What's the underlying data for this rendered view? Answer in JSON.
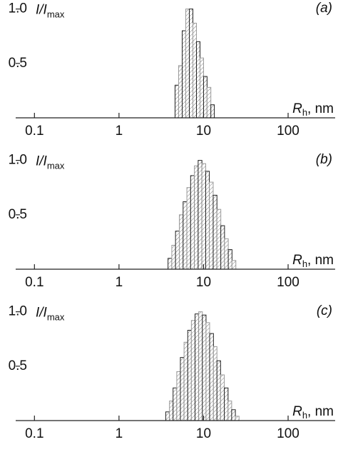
{
  "chart_data": [
    {
      "type": "histogram",
      "panel_label": "(a)",
      "y_label": "I/I",
      "y_label_sub": "max",
      "x_label": "R",
      "x_label_sub": "h",
      "x_label_unit": ", nm",
      "log_x": true,
      "xlim": [
        0.06,
        360
      ],
      "xticks": [
        0.1,
        1,
        10,
        100
      ],
      "ylim": [
        0,
        1.05
      ],
      "yticks": [
        {
          "value": 0.5,
          "label": "0.5"
        },
        {
          "value": 1,
          "label": "1.0"
        }
      ],
      "bins": [
        4.6,
        5.07,
        5.59,
        6.16,
        6.79,
        7.48,
        8.24,
        9.08,
        10.0,
        11.0,
        12.2,
        13.4
      ],
      "values": [
        0.3,
        0.48,
        0.8,
        1.0,
        1.0,
        0.87,
        0.7,
        0.55,
        0.38,
        0.28,
        0.12
      ]
    },
    {
      "type": "histogram",
      "panel_label": "(b)",
      "y_label": "I/I",
      "y_label_sub": "max",
      "x_label": "R",
      "x_label_sub": "h",
      "x_label_unit": ", nm",
      "log_x": true,
      "xlim": [
        0.06,
        360
      ],
      "xticks": [
        0.1,
        1,
        10,
        100
      ],
      "ylim": [
        0,
        1.05
      ],
      "yticks": [
        {
          "value": 0.5,
          "label": "0.5"
        },
        {
          "value": 1,
          "label": "1.0"
        }
      ],
      "bins": [
        3.8,
        4.21,
        4.66,
        5.17,
        5.73,
        6.35,
        7.03,
        7.79,
        8.63,
        9.57,
        10.6,
        11.7,
        13.0,
        14.4,
        16.0,
        17.7,
        19.6,
        21.7,
        24.1
      ],
      "values": [
        0.1,
        0.22,
        0.35,
        0.5,
        0.62,
        0.75,
        0.86,
        0.95,
        1.0,
        0.97,
        0.9,
        0.8,
        0.68,
        0.55,
        0.4,
        0.28,
        0.18,
        0.08
      ]
    },
    {
      "type": "histogram",
      "panel_label": "(c)",
      "y_label": "I/I",
      "y_label_sub": "max",
      "x_label": "R",
      "x_label_sub": "h",
      "x_label_unit": ", nm",
      "log_x": true,
      "xlim": [
        0.06,
        360
      ],
      "xticks": [
        0.1,
        1,
        10,
        100
      ],
      "ylim": [
        0,
        1.05
      ],
      "yticks": [
        {
          "value": 0.5,
          "label": "0.5"
        },
        {
          "value": 1,
          "label": "1.0"
        }
      ],
      "bins": [
        3.57,
        3.95,
        4.36,
        4.82,
        5.32,
        5.88,
        6.5,
        7.18,
        7.93,
        8.76,
        9.68,
        10.7,
        11.8,
        13.1,
        14.4,
        15.9,
        17.6,
        19.5,
        21.5,
        23.8,
        26.3
      ],
      "values": [
        0.08,
        0.18,
        0.3,
        0.45,
        0.58,
        0.72,
        0.83,
        0.92,
        0.98,
        1.0,
        0.97,
        0.9,
        0.8,
        0.68,
        0.55,
        0.42,
        0.3,
        0.18,
        0.1,
        0.04
      ]
    }
  ]
}
